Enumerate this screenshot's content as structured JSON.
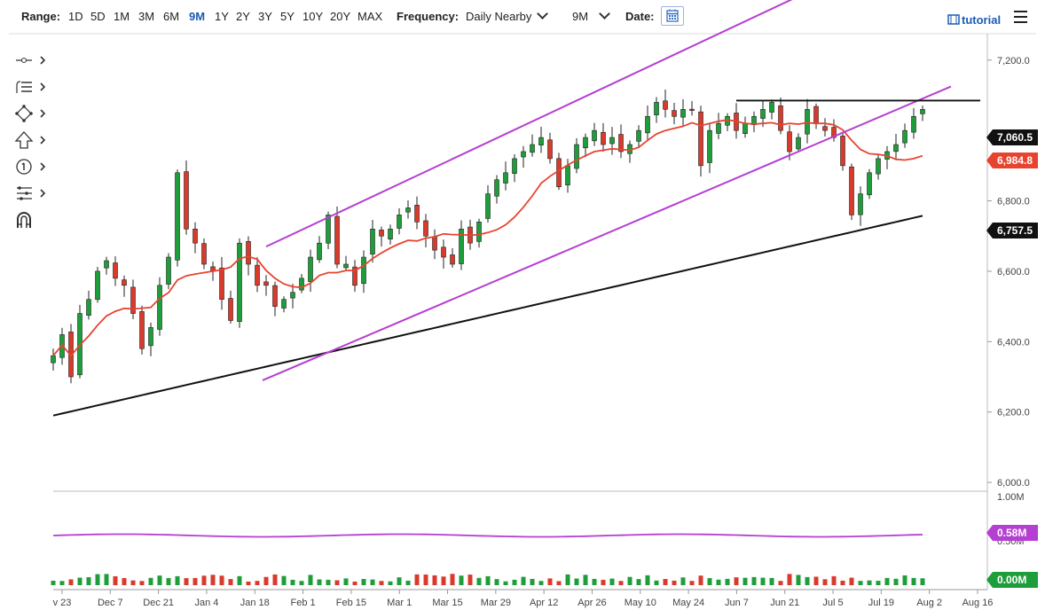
{
  "toolbar": {
    "range_label": "Range:",
    "ranges": [
      "1D",
      "5D",
      "1M",
      "3M",
      "6M",
      "9M",
      "1Y",
      "2Y",
      "3Y",
      "5Y",
      "10Y",
      "20Y",
      "MAX"
    ],
    "active_range": "9M",
    "frequency_label": "Frequency:",
    "frequency_value": "Daily Nearby",
    "period_value": "9M",
    "date_label": "Date:",
    "tutorial_label": "tutorial"
  },
  "drawing_tools": [
    "line-tool-icon",
    "list-tool-icon",
    "shape-tool-icon",
    "arrow-tool-icon",
    "number-tool-icon",
    "fib-tool-icon",
    "magnet-icon"
  ],
  "colors": {
    "up_candle": "#1e9e3a",
    "down_candle": "#d93a2b",
    "ma_fast": "#e8432f",
    "ma_slow": "#111111",
    "channel": "#b53fd1",
    "resistance": "#111111",
    "volume_avg": "#b53fd1",
    "badge_price": "#111111",
    "badge_ma_fast": "#e8432f",
    "badge_vol": "#b53fd1"
  },
  "chart_data": {
    "type": "candlestick",
    "x_tick_labels": [
      "v 23",
      "Dec 7",
      "Dec 21",
      "Jan 4",
      "Jan 18",
      "Feb 1",
      "Feb 15",
      "Mar 1",
      "Mar 15",
      "Mar 29",
      "Apr 12",
      "Apr 26",
      "May 10",
      "May 24",
      "Jun 7",
      "Jun 21",
      "Jul 5",
      "Jul 19",
      "Aug 2",
      "Aug 16"
    ],
    "y_tick_labels": [
      "7,200.0",
      "6,800.0",
      "6,600.0",
      "6,400.0",
      "6,200.0",
      "6,000.0"
    ],
    "ylim": [
      5975,
      7275
    ],
    "last_price": "7,060.5",
    "ma_fast_last": "6,984.8",
    "ma_slow_last": "6,757.5",
    "resistance_level": 7085,
    "price_series": [
      6360,
      6420,
      6300,
      6480,
      6520,
      6600,
      6630,
      6580,
      6560,
      6480,
      6380,
      6440,
      6560,
      6640,
      6880,
      6720,
      6680,
      6620,
      6600,
      6520,
      6460,
      6680,
      6620,
      6560,
      6560,
      6500,
      6520,
      6540,
      6580,
      6640,
      6680,
      6760,
      6620,
      6620,
      6560,
      6640,
      6720,
      6700,
      6720,
      6760,
      6780,
      6740,
      6700,
      6660,
      6640,
      6620,
      6720,
      6680,
      6740,
      6820,
      6860,
      6880,
      6920,
      6940,
      6960,
      6980,
      6920,
      6840,
      6900,
      6960,
      6980,
      7000,
      6960,
      6980,
      6940,
      6960,
      7000,
      7040,
      7080,
      7060,
      7040,
      7060,
      7060,
      6900,
      7000,
      7020,
      7040,
      7000,
      7020,
      7040,
      7060,
      7080,
      7000,
      6940,
      6980,
      7060,
      7020,
      7000,
      6980,
      6900,
      6760,
      6820,
      6880,
      6920,
      6940,
      6960,
      7000,
      7040,
      7060
    ],
    "volume_ylim": [
      0,
      1000000
    ],
    "volume_tick_labels": [
      "1.00M",
      "0.50M"
    ],
    "volume_avg_last": "0.58M",
    "volume_last": "0.00M"
  }
}
